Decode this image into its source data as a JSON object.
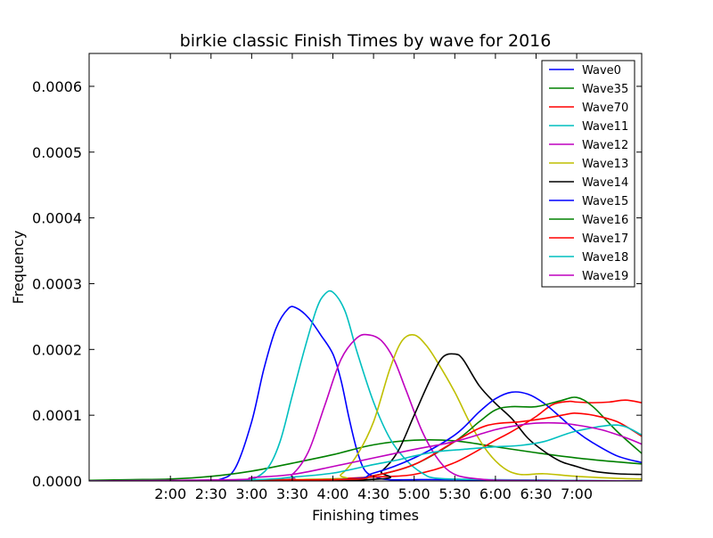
{
  "chart_data": {
    "type": "line",
    "title": "birkie classic Finish Times by wave for 2016",
    "xlabel": "Finishing times",
    "ylabel": "Frequency",
    "xlim": [
      1.0,
      7.8
    ],
    "ylim": [
      0.0,
      0.00065
    ],
    "x_ticks": [
      {
        "value": 2.0,
        "label": "2:00"
      },
      {
        "value": 2.5,
        "label": "2:30"
      },
      {
        "value": 3.0,
        "label": "3:00"
      },
      {
        "value": 3.5,
        "label": "3:30"
      },
      {
        "value": 4.0,
        "label": "4:00"
      },
      {
        "value": 4.5,
        "label": "4:30"
      },
      {
        "value": 5.0,
        "label": "5:00"
      },
      {
        "value": 5.5,
        "label": "5:30"
      },
      {
        "value": 6.0,
        "label": "6:00"
      },
      {
        "value": 6.5,
        "label": "6:30"
      },
      {
        "value": 7.0,
        "label": "7:00"
      }
    ],
    "y_ticks": [
      {
        "value": 0.0,
        "label": "0.0000"
      },
      {
        "value": 0.0001,
        "label": "0.0001"
      },
      {
        "value": 0.0002,
        "label": "0.0002"
      },
      {
        "value": 0.0003,
        "label": "0.0003"
      },
      {
        "value": 0.0004,
        "label": "0.0004"
      },
      {
        "value": 0.0005,
        "label": "0.0005"
      },
      {
        "value": 0.0006,
        "label": "0.0006"
      }
    ],
    "grid": false,
    "legend_position": "top-right",
    "series": [
      {
        "name": "Wave0",
        "color": "#0000ff",
        "x": [
          1.0,
          2.3,
          2.6,
          2.8,
          3.0,
          3.15,
          3.3,
          3.45,
          3.55,
          3.7,
          3.85,
          4.0,
          4.1,
          4.2,
          4.3,
          4.4,
          4.55,
          4.7,
          5.0,
          5.5,
          7.8
        ],
        "y": [
          0,
          0,
          2e-06,
          2e-05,
          9e-05,
          0.00017,
          0.000232,
          0.000262,
          0.000263,
          0.000248,
          0.000222,
          0.000193,
          0.000153,
          9.5e-05,
          4.5e-05,
          1.5e-05,
          5e-06,
          2e-06,
          2e-06,
          2e-06,
          0
        ]
      },
      {
        "name": "Wave35",
        "color": "#008000",
        "x": [
          1.0,
          1.5,
          2.0,
          2.5,
          3.0,
          3.5,
          4.0,
          4.5,
          5.0,
          5.5,
          6.0,
          6.5,
          7.0,
          7.5,
          7.8
        ],
        "y": [
          1e-06,
          2e-06,
          3e-06,
          7e-06,
          1.5e-05,
          2.7e-05,
          4e-05,
          5.5e-05,
          6.2e-05,
          6.1e-05,
          5.2e-05,
          4.3e-05,
          3.5e-05,
          2.9e-05,
          2.6e-05
        ]
      },
      {
        "name": "Wave70",
        "color": "#ff0000",
        "x": [
          1.0,
          3.5,
          4.0,
          4.5,
          5.0,
          5.5,
          6.0,
          6.2,
          6.5,
          6.7,
          6.9,
          7.0,
          7.2,
          7.4,
          7.6,
          7.8
        ],
        "y": [
          0,
          1e-06,
          3e-06,
          6e-06,
          1e-05,
          2.8e-05,
          6.2e-05,
          7.5e-05,
          9.8e-05,
          0.000116,
          0.000121,
          0.00012,
          0.000119,
          0.00012,
          0.000123,
          0.000119
        ]
      },
      {
        "name": "Wave11",
        "color": "#00bfbf",
        "x": [
          1.0,
          2.8,
          3.0,
          3.2,
          3.35,
          3.5,
          3.65,
          3.8,
          3.9,
          4.0,
          4.15,
          4.3,
          4.5,
          4.7,
          4.9,
          5.1,
          5.3,
          6.0,
          7.8
        ],
        "y": [
          0,
          0,
          2e-06,
          2e-05,
          6e-05,
          0.00013,
          0.0002,
          0.000262,
          0.000284,
          0.000287,
          0.000258,
          0.000195,
          0.00012,
          6.5e-05,
          3.2e-05,
          1.2e-05,
          4e-06,
          2e-06,
          0
        ]
      },
      {
        "name": "Wave12",
        "color": "#bf00bf",
        "x": [
          1.0,
          3.3,
          3.5,
          3.7,
          3.9,
          4.1,
          4.3,
          4.45,
          4.6,
          4.75,
          4.9,
          5.1,
          5.3,
          5.5,
          5.8,
          6.2,
          7.8
        ],
        "y": [
          0,
          2e-06,
          1e-05,
          4.5e-05,
          0.000115,
          0.000185,
          0.000218,
          0.000222,
          0.000213,
          0.000185,
          0.000138,
          7.5e-05,
          3.2e-05,
          1e-05,
          3e-06,
          1e-06,
          0
        ]
      },
      {
        "name": "Wave13",
        "color": "#bfbf00",
        "x": [
          1.0,
          3.9,
          4.1,
          4.3,
          4.5,
          4.7,
          4.85,
          5.0,
          5.15,
          5.3,
          5.5,
          5.7,
          5.9,
          6.1,
          6.3,
          6.6,
          7.0,
          7.5,
          7.8
        ],
        "y": [
          0,
          3e-06,
          1e-05,
          4e-05,
          9e-05,
          0.00017,
          0.000213,
          0.000222,
          0.000206,
          0.000178,
          0.000135,
          8.5e-05,
          4.5e-05,
          2e-05,
          1e-05,
          1.1e-05,
          7e-06,
          4e-06,
          3e-06
        ]
      },
      {
        "name": "Wave14",
        "color": "#000000",
        "x": [
          1.0,
          4.4,
          4.6,
          4.8,
          5.0,
          5.2,
          5.35,
          5.5,
          5.6,
          5.8,
          6.0,
          6.2,
          6.4,
          6.6,
          6.8,
          7.0,
          7.2,
          7.5,
          7.8
        ],
        "y": [
          0,
          2e-06,
          1.5e-05,
          4.5e-05,
          0.0001,
          0.000155,
          0.000188,
          0.000193,
          0.000185,
          0.000145,
          0.000118,
          9.5e-05,
          6.5e-05,
          4.5e-05,
          3e-05,
          2.2e-05,
          1.5e-05,
          1.1e-05,
          1e-05
        ]
      },
      {
        "name": "Wave15",
        "color": "#0000ff",
        "x": [
          1.0,
          4.0,
          4.5,
          5.0,
          5.5,
          5.8,
          6.0,
          6.2,
          6.4,
          6.6,
          6.8,
          7.0,
          7.2,
          7.5,
          7.8
        ],
        "y": [
          0,
          2e-06,
          1.2e-05,
          3.5e-05,
          7e-05,
          0.000105,
          0.000125,
          0.000135,
          0.000132,
          0.000118,
          9.7e-05,
          7.5e-05,
          5.8e-05,
          3.8e-05,
          2.8e-05
        ]
      },
      {
        "name": "Wave16",
        "color": "#008000",
        "x": [
          1.0,
          4.0,
          4.5,
          5.0,
          5.5,
          5.8,
          6.0,
          6.2,
          6.5,
          6.8,
          7.0,
          7.2,
          7.5,
          7.8
        ],
        "y": [
          0,
          2e-06,
          8e-06,
          2.5e-05,
          6e-05,
          9e-05,
          0.000108,
          0.000113,
          0.000113,
          0.000122,
          0.000127,
          0.000113,
          7.5e-05,
          4.2e-05
        ]
      },
      {
        "name": "Wave17",
        "color": "#ff0000",
        "x": [
          1.0,
          4.0,
          4.5,
          5.0,
          5.5,
          5.8,
          6.0,
          6.3,
          6.6,
          6.9,
          7.0,
          7.2,
          7.5,
          7.8
        ],
        "y": [
          0,
          2e-06,
          8e-06,
          2.5e-05,
          6e-05,
          8e-05,
          8.7e-05,
          9e-05,
          9.5e-05,
          0.000102,
          0.000103,
          0.0001,
          9e-05,
          6.8e-05
        ]
      },
      {
        "name": "Wave18",
        "color": "#00bfbf",
        "x": [
          1.0,
          3.0,
          3.5,
          4.0,
          4.5,
          4.8,
          5.0,
          5.3,
          5.6,
          6.0,
          6.3,
          6.6,
          7.0,
          7.5,
          7.8
        ],
        "y": [
          0,
          2e-06,
          6e-06,
          1.2e-05,
          2.5e-05,
          3.2e-05,
          3.8e-05,
          4.5e-05,
          4.8e-05,
          5.2e-05,
          5.4e-05,
          6e-05,
          7.6e-05,
          8.5e-05,
          7e-05
        ]
      },
      {
        "name": "Wave19",
        "color": "#bf00bf",
        "x": [
          1.0,
          2.8,
          3.0,
          3.5,
          4.0,
          4.5,
          5.0,
          5.5,
          6.0,
          6.3,
          6.5,
          6.8,
          7.0,
          7.3,
          7.6,
          7.8
        ],
        "y": [
          0,
          2e-06,
          5e-06,
          1e-05,
          2.2e-05,
          3.5e-05,
          4.8e-05,
          6e-05,
          7.8e-05,
          8.5e-05,
          8.8e-05,
          8.8e-05,
          8.5e-05,
          7.8e-05,
          6.6e-05,
          5.6e-05
        ]
      }
    ]
  }
}
